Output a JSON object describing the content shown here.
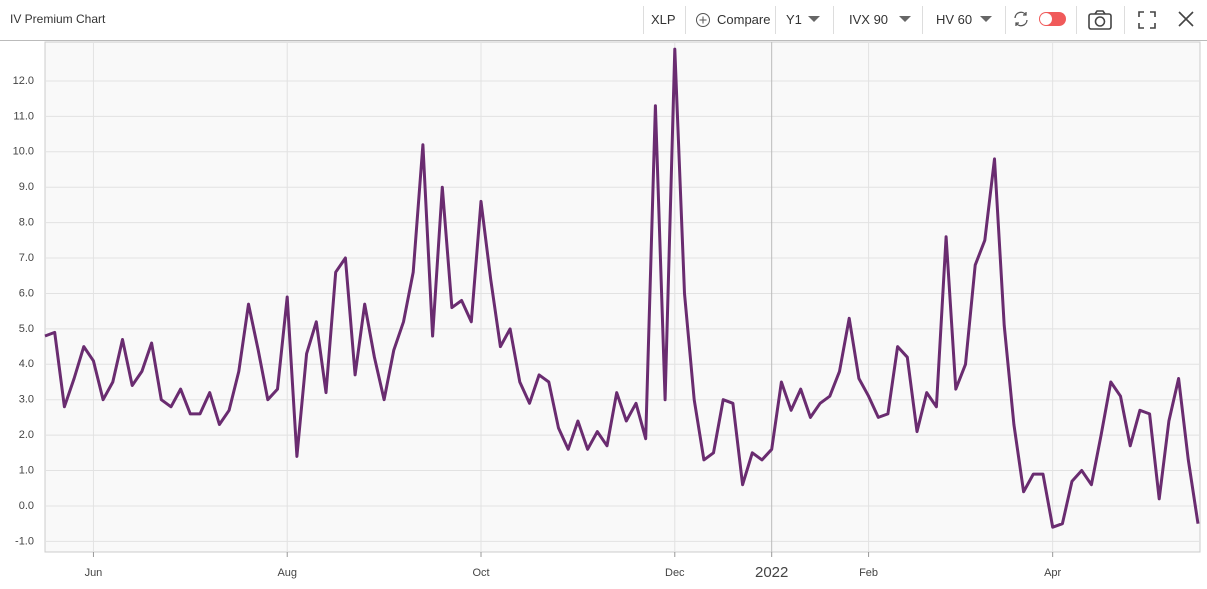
{
  "toolbar": {
    "symbol": "XLP",
    "compare": "Compare",
    "period": "Y1",
    "iv": "IVX 90",
    "hv": "HV 60"
  },
  "chart_data": {
    "type": "line",
    "title": "IV Premium Chart",
    "categories": [
      null,
      null,
      null,
      null,
      null,
      "Jun",
      null,
      null,
      null,
      null,
      null,
      null,
      null,
      null,
      null,
      null,
      null,
      null,
      null,
      null,
      null,
      null,
      null,
      null,
      null,
      "Aug",
      null,
      null,
      null,
      null,
      null,
      null,
      null,
      null,
      null,
      null,
      null,
      null,
      null,
      null,
      null,
      null,
      null,
      null,
      null,
      "Oct",
      null,
      null,
      null,
      null,
      null,
      null,
      null,
      null,
      null,
      null,
      null,
      null,
      null,
      null,
      null,
      null,
      null,
      null,
      null,
      "Dec",
      null,
      null,
      null,
      null,
      null,
      null,
      null,
      null,
      null,
      "2022",
      null,
      null,
      null,
      null,
      null,
      null,
      null,
      null,
      null,
      "Feb",
      null,
      null,
      null,
      null,
      null,
      null,
      null,
      null,
      null,
      null,
      null,
      null,
      null,
      null,
      null,
      null,
      null,
      null,
      "Apr",
      null,
      null,
      null,
      null,
      null,
      null,
      null,
      null,
      null,
      null,
      null,
      null,
      null,
      null,
      null
    ],
    "series": [
      {
        "color": "#6a2c70",
        "values": [
          4.8,
          4.9,
          2.8,
          3.6,
          4.5,
          4.1,
          3.0,
          3.5,
          4.7,
          3.4,
          3.8,
          4.6,
          3.0,
          2.8,
          3.3,
          2.6,
          2.6,
          3.2,
          2.3,
          2.7,
          3.8,
          5.7,
          4.4,
          3.0,
          3.3,
          5.9,
          1.4,
          4.3,
          5.2,
          3.2,
          6.6,
          7.0,
          3.7,
          5.7,
          4.2,
          3.0,
          4.4,
          5.2,
          6.6,
          10.2,
          4.8,
          9.0,
          5.6,
          5.8,
          5.2,
          8.6,
          6.4,
          4.5,
          5.0,
          3.5,
          2.9,
          3.7,
          3.5,
          2.2,
          1.6,
          2.4,
          1.6,
          2.1,
          1.7,
          3.2,
          2.4,
          2.9,
          1.9,
          11.3,
          3.0,
          12.9,
          6.0,
          3.0,
          1.3,
          1.5,
          3.0,
          2.9,
          0.6,
          1.5,
          1.3,
          1.6,
          3.5,
          2.7,
          3.3,
          2.5,
          2.9,
          3.1,
          3.8,
          5.3,
          3.6,
          3.1,
          2.5,
          2.6,
          4.5,
          4.2,
          2.1,
          3.2,
          2.8,
          7.6,
          3.3,
          4.0,
          6.8,
          7.5,
          9.8,
          5.1,
          2.3,
          0.4,
          0.9,
          0.9,
          -0.6,
          -0.5,
          0.7,
          1.0,
          0.6,
          2.0,
          3.5,
          3.1,
          1.7,
          2.7,
          2.6,
          0.2,
          2.4,
          3.6,
          1.3,
          -0.5
        ]
      }
    ],
    "ylim": [
      -1.3,
      13.1
    ],
    "yticks": [
      {
        "value": -1,
        "label": "-1.0"
      },
      {
        "value": 0,
        "label": "0.0"
      },
      {
        "value": 1,
        "label": "1.0"
      },
      {
        "value": 2,
        "label": "2.0"
      },
      {
        "value": 3,
        "label": "3.0"
      },
      {
        "value": 4,
        "label": "4.0"
      },
      {
        "value": 5,
        "label": "5.0"
      },
      {
        "value": 6,
        "label": "6.0"
      },
      {
        "value": 7,
        "label": "7.0"
      },
      {
        "value": 8,
        "label": "8.0"
      },
      {
        "value": 9,
        "label": "9.0"
      },
      {
        "value": 10,
        "label": "10.0"
      },
      {
        "value": 11,
        "label": "11.0"
      },
      {
        "value": 12,
        "label": "12.0"
      }
    ],
    "grid": true
  }
}
